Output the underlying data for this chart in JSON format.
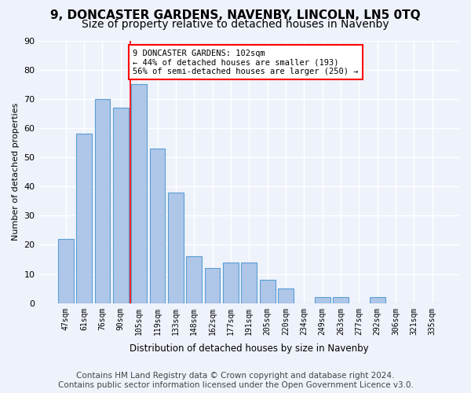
{
  "title1": "9, DONCASTER GARDENS, NAVENBY, LINCOLN, LN5 0TQ",
  "title2": "Size of property relative to detached houses in Navenby",
  "xlabel": "Distribution of detached houses by size in Navenby",
  "ylabel": "Number of detached properties",
  "categories": [
    "47sqm",
    "61sqm",
    "76sqm",
    "90sqm",
    "105sqm",
    "119sqm",
    "133sqm",
    "148sqm",
    "162sqm",
    "177sqm",
    "191sqm",
    "205sqm",
    "220sqm",
    "234sqm",
    "249sqm",
    "263sqm",
    "277sqm",
    "292sqm",
    "306sqm",
    "321sqm",
    "335sqm"
  ],
  "values": [
    22,
    58,
    70,
    67,
    75,
    53,
    38,
    16,
    12,
    14,
    14,
    8,
    5,
    0,
    2,
    2,
    0,
    2,
    0,
    0,
    0
  ],
  "bar_color": "#aec6e8",
  "bar_edge_color": "#5a9fd4",
  "red_line_x": 3.5,
  "annotation_text": "9 DONCASTER GARDENS: 102sqm\n← 44% of detached houses are smaller (193)\n56% of semi-detached houses are larger (250) →",
  "annotation_box_color": "white",
  "annotation_box_edge_color": "red",
  "ylim": [
    0,
    90
  ],
  "yticks": [
    0,
    10,
    20,
    30,
    40,
    50,
    60,
    70,
    80,
    90
  ],
  "footer": "Contains HM Land Registry data © Crown copyright and database right 2024.\nContains public sector information licensed under the Open Government Licence v3.0.",
  "bg_color": "#eef2fb",
  "grid_color": "#ffffff",
  "title_fontsize": 11,
  "subtitle_fontsize": 10,
  "footer_fontsize": 7.5
}
